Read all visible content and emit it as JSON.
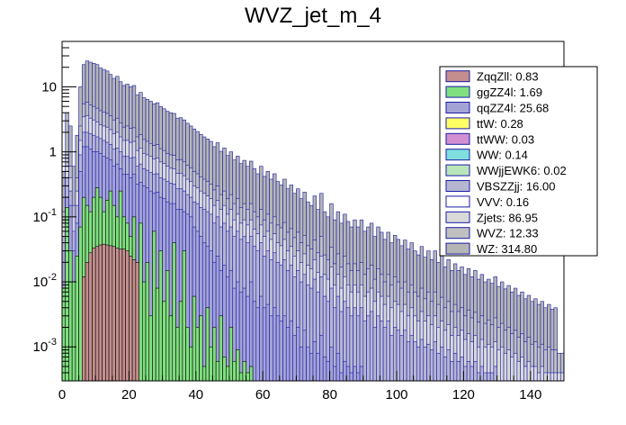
{
  "chart_data": {
    "type": "area",
    "stacked": true,
    "title": "WVZ_jet_m_4",
    "xlabel": "",
    "ylabel": "",
    "xlim": [
      0,
      150
    ],
    "ylim": [
      0.0003,
      50
    ],
    "y_scale": "log",
    "bin_width": 1,
    "grid": false,
    "legend_position": "top-right",
    "x_ticks": [
      0,
      20,
      40,
      60,
      80,
      100,
      120,
      140
    ],
    "y_ticks": [
      {
        "value": 0.001,
        "base": "10",
        "exp": "-3"
      },
      {
        "value": 0.01,
        "base": "10",
        "exp": "-2"
      },
      {
        "value": 0.1,
        "base": "10",
        "exp": "-1"
      },
      {
        "value": 1,
        "base": "1",
        "exp": ""
      },
      {
        "value": 10,
        "base": "10",
        "exp": ""
      }
    ],
    "series": [
      {
        "name": "ZqqZll",
        "label": "ZqqZll: 0.83",
        "color": "#c48e8e"
      },
      {
        "name": "ggZZ4l",
        "label": "ggZZ4l: 1.69",
        "color": "#80e080"
      },
      {
        "name": "qqZZ4l",
        "label": "qqZZ4l: 25.68",
        "color": "#a3a3d6"
      },
      {
        "name": "ttW",
        "label": "ttW: 0.28",
        "color": "#ffff66"
      },
      {
        "name": "ttWW",
        "label": "ttWW: 0.03",
        "color": "#d28fd2"
      },
      {
        "name": "WW",
        "label": "WW: 0.14",
        "color": "#7fdede"
      },
      {
        "name": "WWjjEWK6",
        "label": "WWjjEWK6: 0.02",
        "color": "#b9e6b9"
      },
      {
        "name": "VBSZZjj",
        "label": "VBSZZjj: 16.00",
        "color": "#b6b6d2"
      },
      {
        "name": "VVV",
        "label": "VVV: 0.16",
        "color": "#ffffff"
      },
      {
        "name": "Zjets",
        "label": "Zjets: 86.95",
        "color": "#d9d9d9"
      },
      {
        "name": "WVZ",
        "label": "WVZ: 12.33",
        "color": "#c0c0c0"
      },
      {
        "name": "WZ",
        "label": "WZ: 314.80",
        "color": "#b5b5b5"
      }
    ],
    "envelopes": [
      {
        "series": "ZqqZll",
        "values": [
          0,
          0,
          0,
          0,
          0,
          0,
          0.012,
          0.02,
          0.028,
          0.033,
          0.035,
          0.037,
          0.038,
          0.037,
          0.036,
          0.035,
          0.033,
          0.032,
          0.032,
          0.03,
          0.025,
          0.022,
          0.02
        ]
      },
      {
        "series": "ggZZ4l",
        "values": [
          0.008,
          0.14,
          0.03,
          0.01,
          0.025,
          0.07,
          0.2,
          0.15,
          0.12,
          0.2,
          0.28,
          0.2,
          0.12,
          0.18,
          0.25,
          0.15,
          0.1,
          0.25,
          0.1,
          0.08,
          0.05,
          0.1,
          0.02,
          0.08,
          0.01,
          0.02,
          0.003,
          0.06,
          0.008,
          0.03,
          0.005,
          0.015,
          0.003,
          0.04,
          0.002,
          0.005,
          0.03,
          0.002,
          0.001,
          0.006,
          0.002,
          0.003,
          0.0005,
          0.004,
          0.001,
          0.002,
          0.0006,
          0.003,
          0.0007,
          0.0005,
          0.002,
          0.0006,
          0.0009,
          0.0004,
          0.0006,
          0.0004,
          0.0005
        ]
      },
      {
        "series": "qqZZ4l",
        "values": [
          0.03,
          0.2,
          0.15,
          0.03,
          0.08,
          0.5,
          1.2,
          1.2,
          1.1,
          1.0,
          1.0,
          0.95,
          0.85,
          0.8,
          0.75,
          0.6,
          0.65,
          0.55,
          0.45,
          0.45,
          0.4,
          0.45,
          0.32,
          0.34,
          0.3,
          0.28,
          0.25,
          0.23,
          0.24,
          0.2,
          0.19,
          0.17,
          0.16,
          0.16,
          0.13,
          0.13,
          0.12,
          0.11,
          0.1,
          0.07,
          0.06,
          0.05,
          0.04,
          0.035,
          0.03,
          0.02,
          0.025,
          0.015,
          0.018,
          0.012,
          0.015,
          0.008,
          0.01,
          0.007,
          0.008,
          0.006,
          0.01,
          0.005,
          0.004,
          0.006,
          0.004,
          0.0045,
          0.003,
          0.004,
          0.003,
          0.0025,
          0.003,
          0.002,
          0.0025,
          0.0015,
          0.002,
          0.001,
          0.0018,
          0.001,
          0.0008,
          0.0012,
          0.0008,
          0.0015,
          0.0007,
          0.0006,
          0.001,
          0.0005,
          0.0008,
          0.0004,
          0.0006,
          0.0005,
          0.0004,
          0.0005,
          0.0004,
          0.0005
        ]
      },
      {
        "series": "VBSZZjj",
        "values": [
          0.05,
          0.4,
          0.25,
          0.06,
          0.15,
          0.9,
          2.0,
          2.0,
          1.9,
          1.8,
          1.7,
          1.6,
          1.5,
          1.4,
          1.3,
          1.1,
          1.15,
          1.0,
          0.85,
          0.85,
          0.8,
          0.82,
          0.6,
          0.65,
          0.55,
          0.52,
          0.48,
          0.45,
          0.46,
          0.4,
          0.38,
          0.35,
          0.33,
          0.32,
          0.27,
          0.27,
          0.25,
          0.22,
          0.2,
          0.17,
          0.16,
          0.14,
          0.13,
          0.12,
          0.11,
          0.08,
          0.1,
          0.07,
          0.08,
          0.06,
          0.07,
          0.05,
          0.06,
          0.045,
          0.05,
          0.04,
          0.05,
          0.035,
          0.03,
          0.04,
          0.025,
          0.03,
          0.022,
          0.028,
          0.02,
          0.018,
          0.022,
          0.015,
          0.018,
          0.012,
          0.015,
          0.01,
          0.013,
          0.009,
          0.008,
          0.011,
          0.007,
          0.012,
          0.006,
          0.005,
          0.008,
          0.004,
          0.006,
          0.0035,
          0.005,
          0.004,
          0.003,
          0.004,
          0.003,
          0.004,
          0.0025,
          0.003,
          0.0035,
          0.002,
          0.003,
          0.0025,
          0.002,
          0.0025,
          0.0015,
          0.002,
          0.0018,
          0.0015,
          0.0018,
          0.0012,
          0.0015,
          0.0012,
          0.001,
          0.0013,
          0.001,
          0.0011,
          0.0009,
          0.0012,
          0.0008,
          0.001,
          0.0007,
          0.0009,
          0.0006,
          0.0008,
          0.0006,
          0.0007,
          0.0005,
          0.0006,
          0.0005,
          0.0006,
          0.0004,
          0.0005,
          0.0004,
          0.0004,
          0.0004,
          0.0005
        ]
      },
      {
        "series": "Zjets",
        "values": [
          0.08,
          0.6,
          0.4,
          0.1,
          0.25,
          1.5,
          3.5,
          3.6,
          3.3,
          3.1,
          2.9,
          2.6,
          2.5,
          2.4,
          2.2,
          1.9,
          2.0,
          1.7,
          1.5,
          1.5,
          1.4,
          1.45,
          1.05,
          1.15,
          0.95,
          0.9,
          0.85,
          0.78,
          0.8,
          0.7,
          0.66,
          0.6,
          0.56,
          0.55,
          0.47,
          0.47,
          0.43,
          0.38,
          0.35,
          0.3,
          0.28,
          0.25,
          0.23,
          0.21,
          0.19,
          0.15,
          0.18,
          0.13,
          0.15,
          0.11,
          0.13,
          0.09,
          0.11,
          0.08,
          0.09,
          0.075,
          0.09,
          0.065,
          0.055,
          0.075,
          0.05,
          0.06,
          0.045,
          0.055,
          0.04,
          0.036,
          0.045,
          0.03,
          0.035,
          0.025,
          0.03,
          0.02,
          0.027,
          0.018,
          0.016,
          0.022,
          0.014,
          0.025,
          0.013,
          0.011,
          0.017,
          0.009,
          0.013,
          0.008,
          0.012,
          0.009,
          0.007,
          0.009,
          0.007,
          0.009,
          0.006,
          0.007,
          0.008,
          0.005,
          0.007,
          0.006,
          0.0045,
          0.006,
          0.004,
          0.005,
          0.0045,
          0.0035,
          0.0045,
          0.003,
          0.004,
          0.003,
          0.0025,
          0.0035,
          0.0025,
          0.003,
          0.0022,
          0.003,
          0.002,
          0.0025,
          0.0018,
          0.0022,
          0.0015,
          0.002,
          0.0015,
          0.0018,
          0.0013,
          0.0016,
          0.0012,
          0.0015,
          0.001,
          0.0013,
          0.001,
          0.0011,
          0.001,
          0.0012,
          0.0009,
          0.001,
          0.0008,
          0.0009,
          0.0007,
          0.0008,
          0.0006,
          0.0007,
          0.0005,
          0.0006,
          0.0005,
          0.0005,
          0.0004,
          0.0005,
          0.0004,
          0.0004,
          0.0004,
          0.0004,
          0.0004,
          0.0004
        ]
      },
      {
        "series": "WVZ",
        "values": [
          0.12,
          0.9,
          0.6,
          0.15,
          0.4,
          2.5,
          5.5,
          5.8,
          5.3,
          5.0,
          4.7,
          4.3,
          4.1,
          3.9,
          3.6,
          3.1,
          3.3,
          2.8,
          2.4,
          2.5,
          2.3,
          2.35,
          1.7,
          1.85,
          1.55,
          1.45,
          1.35,
          1.25,
          1.3,
          1.12,
          1.05,
          0.95,
          0.9,
          0.88,
          0.75,
          0.76,
          0.7,
          0.62,
          0.57,
          0.5,
          0.46,
          0.41,
          0.38,
          0.35,
          0.32,
          0.26,
          0.3,
          0.22,
          0.25,
          0.19,
          0.22,
          0.16,
          0.19,
          0.14,
          0.16,
          0.13,
          0.16,
          0.12,
          0.1,
          0.13,
          0.09,
          0.11,
          0.08,
          0.1,
          0.075,
          0.068,
          0.082,
          0.058,
          0.066,
          0.048,
          0.058,
          0.04,
          0.052,
          0.036,
          0.032,
          0.044,
          0.028,
          0.05,
          0.026,
          0.022,
          0.034,
          0.019,
          0.027,
          0.017,
          0.025,
          0.019,
          0.015,
          0.019,
          0.015,
          0.02,
          0.013,
          0.016,
          0.018,
          0.011,
          0.016,
          0.013,
          0.01,
          0.013,
          0.009,
          0.012,
          0.01,
          0.008,
          0.01,
          0.007,
          0.009,
          0.007,
          0.006,
          0.008,
          0.0055,
          0.007,
          0.005,
          0.007,
          0.0045,
          0.0058,
          0.004,
          0.005,
          0.0035,
          0.0045,
          0.0035,
          0.004,
          0.003,
          0.0037,
          0.0028,
          0.0034,
          0.0024,
          0.003,
          0.0023,
          0.0026,
          0.0022,
          0.0028,
          0.002,
          0.0023,
          0.0018,
          0.002,
          0.0016,
          0.0018,
          0.0014,
          0.0016,
          0.0012,
          0.0014,
          0.0011,
          0.0012,
          0.001,
          0.0011,
          0.0009,
          0.001,
          0.0009,
          0.0009,
          0.0008,
          0.0008
        ]
      },
      {
        "series": "WZ",
        "values": [
          0.5,
          4.0,
          2.5,
          0.6,
          1.8,
          10.0,
          22.0,
          25.0,
          24.0,
          23.0,
          22.0,
          19.5,
          18.5,
          17.5,
          15.5,
          13.5,
          14.5,
          12.0,
          10.5,
          11.0,
          10.0,
          10.5,
          7.5,
          8.2,
          6.8,
          6.4,
          6.0,
          5.5,
          5.7,
          5.0,
          4.6,
          4.2,
          4.0,
          3.9,
          3.3,
          3.35,
          3.1,
          2.75,
          2.5,
          2.25,
          2.05,
          1.85,
          1.7,
          1.58,
          1.45,
          1.2,
          1.38,
          1.02,
          1.15,
          0.88,
          1.0,
          0.75,
          0.86,
          0.66,
          0.74,
          0.6,
          0.72,
          0.55,
          0.46,
          0.6,
          0.42,
          0.5,
          0.38,
          0.46,
          0.35,
          0.31,
          0.38,
          0.27,
          0.31,
          0.23,
          0.27,
          0.19,
          0.24,
          0.17,
          0.15,
          0.21,
          0.13,
          0.23,
          0.12,
          0.1,
          0.16,
          0.09,
          0.12,
          0.08,
          0.11,
          0.085,
          0.07,
          0.09,
          0.07,
          0.09,
          0.06,
          0.07,
          0.08,
          0.05,
          0.07,
          0.058,
          0.045,
          0.058,
          0.04,
          0.052,
          0.045,
          0.036,
          0.044,
          0.032,
          0.04,
          0.03,
          0.026,
          0.035,
          0.024,
          0.03,
          0.022,
          0.03,
          0.02,
          0.025,
          0.017,
          0.022,
          0.015,
          0.019,
          0.015,
          0.017,
          0.013,
          0.016,
          0.012,
          0.015,
          0.011,
          0.013,
          0.01,
          0.011,
          0.0095,
          0.012,
          0.0085,
          0.01,
          0.0078,
          0.0088,
          0.007,
          0.008,
          0.0062,
          0.007,
          0.0055,
          0.0062,
          0.005,
          0.0055,
          0.0045,
          0.005,
          0.004,
          0.0045,
          0.0038,
          0.004
        ]
      }
    ]
  }
}
